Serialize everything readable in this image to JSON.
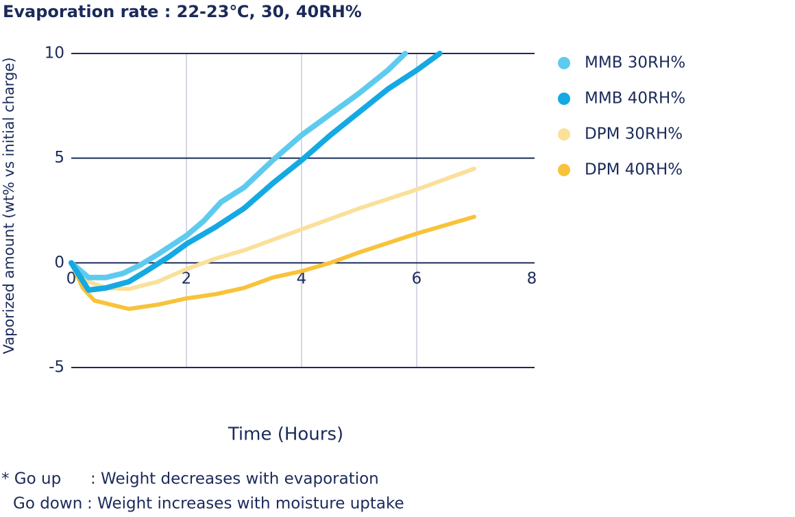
{
  "chart_data": {
    "type": "line",
    "title": "Evaporation rate : 22-23℃, 30, 40RH%",
    "xlabel": "Time (Hours)",
    "ylabel": "Vaporized amount (wt% vs initial charge)",
    "xlim": [
      0,
      8
    ],
    "xticks": [
      0,
      2,
      4,
      6,
      8
    ],
    "ylim": [
      -5,
      10
    ],
    "yticks": [
      10,
      5,
      0,
      -5
    ],
    "grid": true,
    "legend": "right",
    "series": [
      {
        "name": "MMB 30RH%",
        "color": "#5ecbee",
        "x": [
          0,
          0.3,
          0.6,
          0.9,
          1.2,
          1.5,
          2,
          2.3,
          2.6,
          3,
          3.5,
          4,
          4.5,
          5,
          5.5,
          5.8
        ],
        "values": [
          0,
          -0.7,
          -0.7,
          -0.5,
          -0.1,
          0.4,
          1.3,
          2,
          2.9,
          3.6,
          4.9,
          6.1,
          7.1,
          8.1,
          9.2,
          10
        ]
      },
      {
        "name": "MMB 40RH%",
        "color": "#14a9e3",
        "x": [
          0,
          0.3,
          0.6,
          1,
          1.3,
          1.7,
          2,
          2.5,
          3,
          3.5,
          4,
          4.5,
          5,
          5.5,
          6,
          6.4
        ],
        "values": [
          0,
          -1.3,
          -1.2,
          -0.9,
          -0.4,
          0.3,
          0.9,
          1.7,
          2.6,
          3.8,
          4.9,
          6.1,
          7.2,
          8.3,
          9.2,
          10
        ]
      },
      {
        "name": "DPM 30RH%",
        "color": "#fbe09a",
        "x": [
          0,
          0.3,
          0.6,
          1,
          1.5,
          2,
          2.5,
          3,
          4,
          5,
          6,
          7
        ],
        "values": [
          0,
          -0.9,
          -1.2,
          -1.25,
          -0.9,
          -0.3,
          0.2,
          0.6,
          1.6,
          2.6,
          3.5,
          4.5
        ]
      },
      {
        "name": "DPM 40RH%",
        "color": "#f8c33a",
        "x": [
          0,
          0.2,
          0.4,
          0.7,
          1,
          1.5,
          2,
          2.5,
          3,
          3.5,
          4,
          4.5,
          5,
          6,
          7
        ],
        "values": [
          0,
          -1.2,
          -1.8,
          -2,
          -2.2,
          -2,
          -1.7,
          -1.5,
          -1.2,
          -0.7,
          -0.4,
          0,
          0.5,
          1.4,
          2.2
        ]
      }
    ],
    "notes": [
      {
        "term": "* Go up",
        "text": ": Weight decreases with evaporation"
      },
      {
        "term": "Go down",
        "text": ": Weight increases with moisture uptake"
      }
    ]
  }
}
